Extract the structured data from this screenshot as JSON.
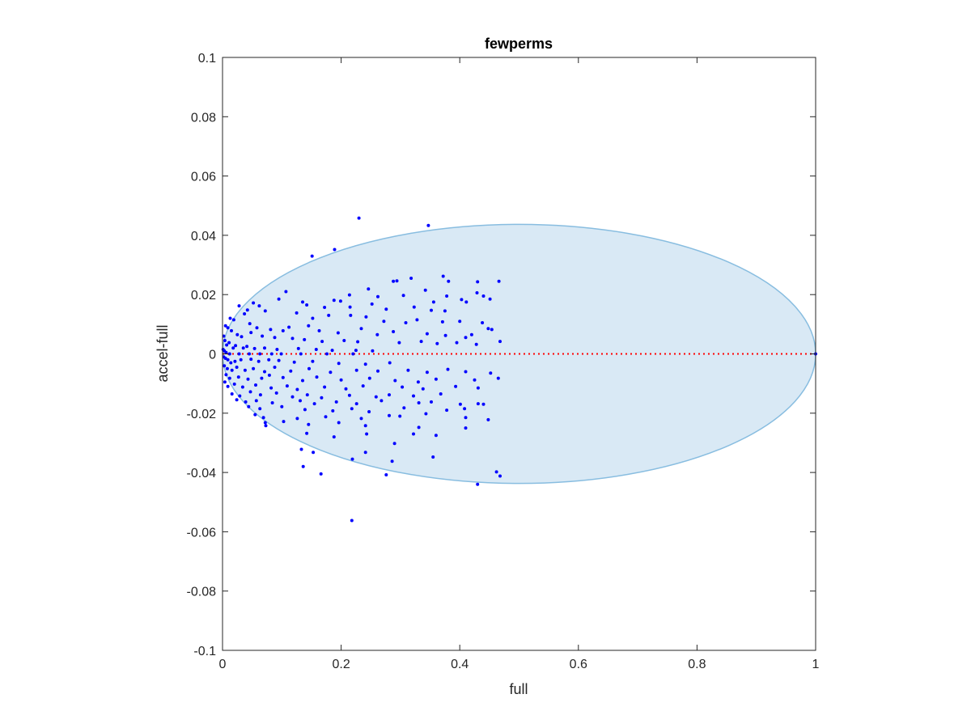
{
  "chart_data": {
    "type": "scatter",
    "title": "fewperms",
    "xlabel": "full",
    "ylabel": "accel-full",
    "xlim": [
      0,
      1
    ],
    "ylim": [
      -0.1,
      0.1
    ],
    "xticks": [
      0,
      0.2,
      0.4,
      0.6,
      0.8,
      1
    ],
    "xtick_labels": [
      "0",
      "0.2",
      "0.4",
      "0.6",
      "0.8",
      "1"
    ],
    "yticks": [
      0.1,
      0.08,
      0.06,
      0.04,
      0.02,
      0,
      -0.02,
      -0.04,
      -0.06,
      -0.08,
      -0.1
    ],
    "ytick_labels": [
      "0.1",
      "0.08",
      "0.06",
      "0.04",
      "0.02",
      "0",
      "-0.02",
      "-0.04",
      "-0.06",
      "-0.08",
      "-0.1"
    ],
    "grid": false,
    "box": true,
    "ellipse": {
      "center": [
        0.5,
        0
      ],
      "rx": 0.5,
      "ry": 0.0437,
      "fill": "#d9e9f5",
      "stroke": "#88bde0"
    },
    "reference_line": {
      "y": 0,
      "x": [
        0,
        1
      ],
      "color": "#ff0000",
      "style": "dotted"
    },
    "marker_color": "#0000ff",
    "points": [
      [
        0.23,
        0.0458
      ],
      [
        0.347,
        0.0433
      ],
      [
        0.189,
        0.0352
      ],
      [
        0.151,
        0.033
      ],
      [
        0.372,
        0.0262
      ],
      [
        0.381,
        0.0245
      ],
      [
        0.294,
        0.0246
      ],
      [
        0.288,
        0.0245
      ],
      [
        0.318,
        0.0255
      ],
      [
        0.43,
        0.0243
      ],
      [
        0.466,
        0.0245
      ],
      [
        0.342,
        0.0215
      ],
      [
        0.214,
        0.0199
      ],
      [
        0.246,
        0.0219
      ],
      [
        0.262,
        0.0193
      ],
      [
        0.305,
        0.0197
      ],
      [
        0.356,
        0.0175
      ],
      [
        0.378,
        0.0195
      ],
      [
        0.411,
        0.0175
      ],
      [
        0.429,
        0.0206
      ],
      [
        0.44,
        0.0195
      ],
      [
        0.403,
        0.0183
      ],
      [
        0.451,
        0.0185
      ],
      [
        0.107,
        0.021
      ],
      [
        0.095,
        0.0185
      ],
      [
        0.135,
        0.0175
      ],
      [
        0.142,
        0.0165
      ],
      [
        0.172,
        0.0157
      ],
      [
        0.188,
        0.0181
      ],
      [
        0.199,
        0.0178
      ],
      [
        0.215,
        0.0158
      ],
      [
        0.252,
        0.0168
      ],
      [
        0.276,
        0.0151
      ],
      [
        0.323,
        0.0158
      ],
      [
        0.352,
        0.0147
      ],
      [
        0.375,
        0.0145
      ],
      [
        0.052,
        0.0172
      ],
      [
        0.062,
        0.0162
      ],
      [
        0.042,
        0.0148
      ],
      [
        0.072,
        0.0145
      ],
      [
        0.028,
        0.0162
      ],
      [
        0.037,
        0.0135
      ],
      [
        0.125,
        0.0138
      ],
      [
        0.152,
        0.012
      ],
      [
        0.179,
        0.013
      ],
      [
        0.216,
        0.013
      ],
      [
        0.242,
        0.0125
      ],
      [
        0.272,
        0.011
      ],
      [
        0.309,
        0.0105
      ],
      [
        0.328,
        0.0115
      ],
      [
        0.371,
        0.0108
      ],
      [
        0.4,
        0.011
      ],
      [
        0.438,
        0.0105
      ],
      [
        0.448,
        0.0085
      ],
      [
        0.454,
        0.0082
      ],
      [
        0.468,
        0.0042
      ],
      [
        0.013,
        0.012
      ],
      [
        0.019,
        0.0115
      ],
      [
        0.046,
        0.0102
      ],
      [
        0.058,
        0.0088
      ],
      [
        0.081,
        0.0082
      ],
      [
        0.102,
        0.0078
      ],
      [
        0.112,
        0.009
      ],
      [
        0.145,
        0.0095
      ],
      [
        0.163,
        0.0078
      ],
      [
        0.195,
        0.0071
      ],
      [
        0.234,
        0.0085
      ],
      [
        0.261,
        0.0065
      ],
      [
        0.288,
        0.0075
      ],
      [
        0.345,
        0.0068
      ],
      [
        0.376,
        0.0062
      ],
      [
        0.41,
        0.0055
      ],
      [
        0.42,
        0.0065
      ],
      [
        0.005,
        0.0095
      ],
      [
        0.009,
        0.0088
      ],
      [
        0.015,
        0.0078
      ],
      [
        0.025,
        0.0065
      ],
      [
        0.032,
        0.0058
      ],
      [
        0.048,
        0.0072
      ],
      [
        0.067,
        0.006
      ],
      [
        0.088,
        0.0055
      ],
      [
        0.118,
        0.0052
      ],
      [
        0.138,
        0.0048
      ],
      [
        0.168,
        0.0042
      ],
      [
        0.205,
        0.0045
      ],
      [
        0.228,
        0.0041
      ],
      [
        0.298,
        0.0038
      ],
      [
        0.335,
        0.0042
      ],
      [
        0.362,
        0.0035
      ],
      [
        0.395,
        0.0038
      ],
      [
        0.428,
        0.0032
      ],
      [
        0.002,
        0.006
      ],
      [
        0.004,
        0.0045
      ],
      [
        0.007,
        0.003
      ],
      [
        0.011,
        0.0038
      ],
      [
        0.018,
        0.002
      ],
      [
        0.022,
        0.0028
      ],
      [
        0.035,
        0.002
      ],
      [
        0.041,
        0.0025
      ],
      [
        0.054,
        0.0018
      ],
      [
        0.071,
        0.002
      ],
      [
        0.092,
        0.0015
      ],
      [
        0.128,
        0.0018
      ],
      [
        0.158,
        0.0015
      ],
      [
        0.185,
        0.0012
      ],
      [
        0.225,
        0.0012
      ],
      [
        0.253,
        0.001
      ],
      [
        0.001,
        0.0015
      ],
      [
        0.003,
        0.001
      ],
      [
        0.006,
        0.0005
      ],
      [
        0.012,
        0.0
      ],
      [
        0.028,
        0.0
      ],
      [
        0.045,
        0.0
      ],
      [
        0.063,
        0.0
      ],
      [
        0.083,
        0.0
      ],
      [
        0.099,
        0.0
      ],
      [
        0.132,
        0.0
      ],
      [
        0.176,
        0.0
      ],
      [
        0.22,
        0.0
      ],
      [
        0.002,
        -0.001
      ],
      [
        0.005,
        -0.0015
      ],
      [
        0.009,
        -0.002
      ],
      [
        0.014,
        -0.003
      ],
      [
        0.021,
        -0.0025
      ],
      [
        0.031,
        -0.002
      ],
      [
        0.048,
        -0.0018
      ],
      [
        0.061,
        -0.0025
      ],
      [
        0.078,
        -0.002
      ],
      [
        0.095,
        -0.0022
      ],
      [
        0.121,
        -0.0028
      ],
      [
        0.152,
        -0.0025
      ],
      [
        0.196,
        -0.0032
      ],
      [
        0.241,
        -0.0035
      ],
      [
        0.282,
        -0.003
      ],
      [
        0.003,
        -0.004
      ],
      [
        0.008,
        -0.005
      ],
      [
        0.016,
        -0.0055
      ],
      [
        0.024,
        -0.0045
      ],
      [
        0.038,
        -0.0055
      ],
      [
        0.052,
        -0.005
      ],
      [
        0.071,
        -0.006
      ],
      [
        0.088,
        -0.0045
      ],
      [
        0.115,
        -0.0058
      ],
      [
        0.146,
        -0.005
      ],
      [
        0.182,
        -0.0062
      ],
      [
        0.226,
        -0.0055
      ],
      [
        0.262,
        -0.0058
      ],
      [
        0.313,
        -0.0055
      ],
      [
        0.345,
        -0.0062
      ],
      [
        0.38,
        -0.0052
      ],
      [
        0.41,
        -0.006
      ],
      [
        0.452,
        -0.0065
      ],
      [
        0.006,
        -0.007
      ],
      [
        0.012,
        -0.0082
      ],
      [
        0.027,
        -0.0078
      ],
      [
        0.043,
        -0.0085
      ],
      [
        0.066,
        -0.0082
      ],
      [
        0.079,
        -0.0072
      ],
      [
        0.102,
        -0.008
      ],
      [
        0.135,
        -0.009
      ],
      [
        0.159,
        -0.0078
      ],
      [
        0.2,
        -0.0088
      ],
      [
        0.248,
        -0.0082
      ],
      [
        0.291,
        -0.009
      ],
      [
        0.33,
        -0.0095
      ],
      [
        0.36,
        -0.0085
      ],
      [
        0.425,
        -0.0088
      ],
      [
        0.465,
        -0.0082
      ],
      [
        0.004,
        -0.0095
      ],
      [
        0.009,
        -0.011
      ],
      [
        0.02,
        -0.0102
      ],
      [
        0.034,
        -0.0112
      ],
      [
        0.056,
        -0.0105
      ],
      [
        0.082,
        -0.0115
      ],
      [
        0.109,
        -0.0108
      ],
      [
        0.126,
        -0.012
      ],
      [
        0.172,
        -0.0112
      ],
      [
        0.208,
        -0.0118
      ],
      [
        0.237,
        -0.0108
      ],
      [
        0.303,
        -0.0112
      ],
      [
        0.338,
        -0.0118
      ],
      [
        0.393,
        -0.011
      ],
      [
        0.431,
        -0.0115
      ],
      [
        0.016,
        -0.0135
      ],
      [
        0.029,
        -0.0142
      ],
      [
        0.047,
        -0.0128
      ],
      [
        0.064,
        -0.0138
      ],
      [
        0.091,
        -0.0132
      ],
      [
        0.118,
        -0.0145
      ],
      [
        0.143,
        -0.0138
      ],
      [
        0.167,
        -0.0148
      ],
      [
        0.214,
        -0.014
      ],
      [
        0.259,
        -0.0145
      ],
      [
        0.281,
        -0.0138
      ],
      [
        0.322,
        -0.0142
      ],
      [
        0.368,
        -0.0135
      ],
      [
        0.024,
        -0.0155
      ],
      [
        0.039,
        -0.0162
      ],
      [
        0.057,
        -0.0158
      ],
      [
        0.084,
        -0.0165
      ],
      [
        0.131,
        -0.0158
      ],
      [
        0.155,
        -0.0168
      ],
      [
        0.192,
        -0.0162
      ],
      [
        0.226,
        -0.0168
      ],
      [
        0.268,
        -0.0158
      ],
      [
        0.331,
        -0.0165
      ],
      [
        0.352,
        -0.0162
      ],
      [
        0.401,
        -0.017
      ],
      [
        0.431,
        -0.0168
      ],
      [
        0.44,
        -0.017
      ],
      [
        0.044,
        -0.0178
      ],
      [
        0.063,
        -0.0185
      ],
      [
        0.1,
        -0.0178
      ],
      [
        0.139,
        -0.0188
      ],
      [
        0.186,
        -0.0192
      ],
      [
        0.218,
        -0.0185
      ],
      [
        0.247,
        -0.0195
      ],
      [
        0.306,
        -0.0182
      ],
      [
        0.378,
        -0.019
      ],
      [
        0.408,
        -0.0185
      ],
      [
        0.055,
        -0.0205
      ],
      [
        0.069,
        -0.0215
      ],
      [
        0.126,
        -0.0218
      ],
      [
        0.174,
        -0.0212
      ],
      [
        0.234,
        -0.0218
      ],
      [
        0.281,
        -0.0208
      ],
      [
        0.299,
        -0.021
      ],
      [
        0.343,
        -0.0202
      ],
      [
        0.41,
        -0.0215
      ],
      [
        0.448,
        -0.0222
      ],
      [
        0.072,
        -0.0232
      ],
      [
        0.103,
        -0.0228
      ],
      [
        0.145,
        -0.0238
      ],
      [
        0.196,
        -0.0232
      ],
      [
        0.241,
        -0.0242
      ],
      [
        0.331,
        -0.0248
      ],
      [
        0.41,
        -0.025
      ],
      [
        0.073,
        -0.0242
      ],
      [
        0.142,
        -0.0268
      ],
      [
        0.188,
        -0.028
      ],
      [
        0.243,
        -0.027
      ],
      [
        0.322,
        -0.027
      ],
      [
        0.36,
        -0.0275
      ],
      [
        0.29,
        -0.0302
      ],
      [
        0.133,
        -0.0322
      ],
      [
        0.153,
        -0.0332
      ],
      [
        0.241,
        -0.0332
      ],
      [
        0.219,
        -0.0355
      ],
      [
        0.355,
        -0.0348
      ],
      [
        0.286,
        -0.0362
      ],
      [
        0.136,
        -0.038
      ],
      [
        0.166,
        -0.0405
      ],
      [
        0.276,
        -0.0408
      ],
      [
        0.462,
        -0.0398
      ],
      [
        0.468,
        -0.0412
      ],
      [
        0.43,
        -0.044
      ],
      [
        0.218,
        -0.0562
      ],
      [
        1.0,
        0.0
      ]
    ]
  }
}
